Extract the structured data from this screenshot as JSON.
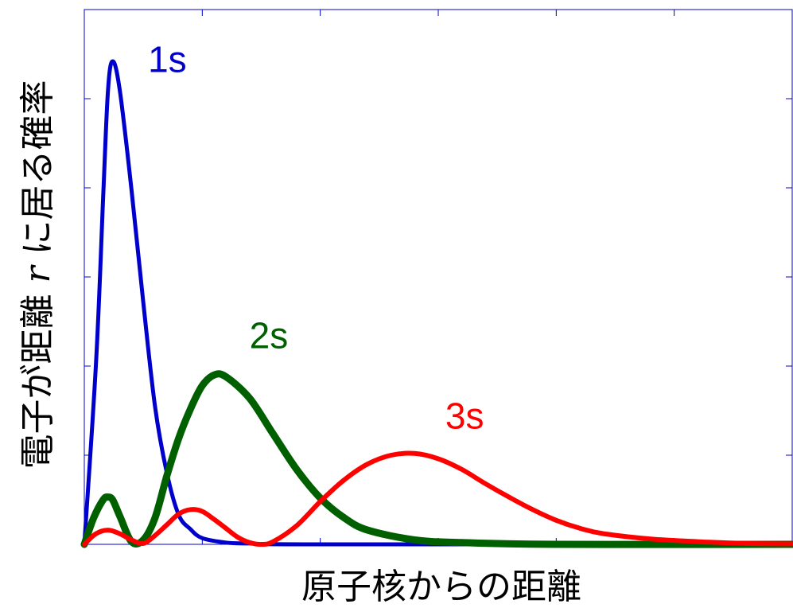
{
  "chart_data": {
    "type": "line",
    "title": "",
    "xlabel": "原子核からの距離",
    "ylabel": {
      "prefix": "電子が距離 ",
      "variable": "r",
      "suffix": " に居る確率"
    },
    "xlim": [
      0,
      30
    ],
    "ylim": [
      0,
      6
    ],
    "x_ticks": [
      0,
      5,
      10,
      15,
      20,
      25,
      30
    ],
    "y_ticks": [
      0,
      1,
      2,
      3,
      4,
      5,
      6
    ],
    "tick_labels_visible": false,
    "grid": false,
    "series": [
      {
        "name": "1s",
        "color": "#0000cc",
        "points": [
          [
            0,
            0
          ],
          [
            0.5,
            2.05
          ],
          [
            0.8,
            3.9
          ],
          [
            1.0,
            5.08
          ],
          [
            1.2,
            5.42
          ],
          [
            1.5,
            5.1
          ],
          [
            2.0,
            3.98
          ],
          [
            2.5,
            2.71
          ],
          [
            3.0,
            1.54
          ],
          [
            3.5,
            0.8
          ],
          [
            4.0,
            0.33
          ],
          [
            4.5,
            0.17
          ],
          [
            5.0,
            0.07
          ],
          [
            6.0,
            0.02
          ],
          [
            7.0,
            0.01
          ],
          [
            10.0,
            0
          ],
          [
            30.0,
            0
          ]
        ]
      },
      {
        "name": "2s",
        "color": "#006000",
        "points": [
          [
            0,
            0
          ],
          [
            0.4,
            0.3
          ],
          [
            0.8,
            0.5
          ],
          [
            1.0,
            0.53
          ],
          [
            1.2,
            0.5
          ],
          [
            1.5,
            0.32
          ],
          [
            2.0,
            0.03
          ],
          [
            2.5,
            0.05
          ],
          [
            3.0,
            0.3
          ],
          [
            3.5,
            0.77
          ],
          [
            4.0,
            1.19
          ],
          [
            4.5,
            1.52
          ],
          [
            5.0,
            1.78
          ],
          [
            5.5,
            1.9
          ],
          [
            6.0,
            1.88
          ],
          [
            7.0,
            1.64
          ],
          [
            8.0,
            1.24
          ],
          [
            9.0,
            0.84
          ],
          [
            10.0,
            0.52
          ],
          [
            11.0,
            0.3
          ],
          [
            12.0,
            0.16
          ],
          [
            14.0,
            0.05
          ],
          [
            16.0,
            0.02
          ],
          [
            20.0,
            0
          ],
          [
            30.0,
            0
          ]
        ]
      },
      {
        "name": "3s",
        "color": "#ff0000",
        "points": [
          [
            0,
            0
          ],
          [
            0.5,
            0.12
          ],
          [
            1.0,
            0.16
          ],
          [
            1.5,
            0.12
          ],
          [
            2.0,
            0.05
          ],
          [
            2.5,
            0.01
          ],
          [
            3.0,
            0.1
          ],
          [
            3.5,
            0.22
          ],
          [
            4.0,
            0.34
          ],
          [
            4.5,
            0.39
          ],
          [
            5.0,
            0.37
          ],
          [
            5.5,
            0.28
          ],
          [
            6.0,
            0.18
          ],
          [
            6.5,
            0.08
          ],
          [
            7.0,
            0.02
          ],
          [
            7.5,
            0.0
          ],
          [
            8.0,
            0.03
          ],
          [
            9.0,
            0.21
          ],
          [
            10.0,
            0.48
          ],
          [
            11.0,
            0.72
          ],
          [
            12.0,
            0.9
          ],
          [
            13.0,
            1.0
          ],
          [
            14.0,
            1.02
          ],
          [
            15.0,
            0.96
          ],
          [
            16.0,
            0.84
          ],
          [
            17.0,
            0.68
          ],
          [
            18.0,
            0.53
          ],
          [
            19.0,
            0.39
          ],
          [
            20.0,
            0.27
          ],
          [
            21.0,
            0.18
          ],
          [
            22.0,
            0.12
          ],
          [
            24.0,
            0.06
          ],
          [
            26.0,
            0.03
          ],
          [
            28.0,
            0.01
          ],
          [
            30.0,
            0.005
          ]
        ]
      }
    ]
  }
}
